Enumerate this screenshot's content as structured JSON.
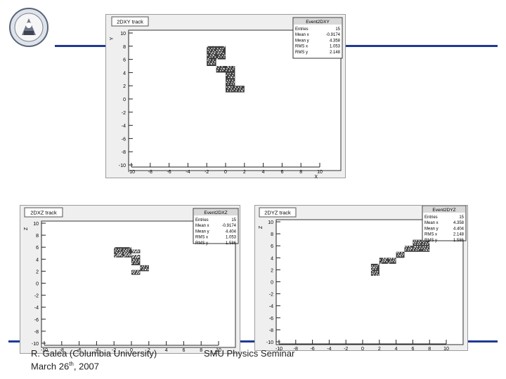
{
  "footer": {
    "author": "R. Galea (Columbia University)",
    "date_prefix": "March 26",
    "date_sup": "th",
    "date_suffix": ", 2007",
    "seminar": "SMU Physics Seminar"
  },
  "colors": {
    "rule": "#1f3a93",
    "panel_bg": "#efefef",
    "plot_bg": "#ffffff",
    "hits": "#111111",
    "stats_header": "#d8d8d8"
  },
  "chart_data": [
    {
      "type": "heatmap",
      "title": "2DXY track",
      "xlabel": "X",
      "ylabel": "Y",
      "xlim": [
        -10,
        10
      ],
      "ylim": [
        -10,
        10
      ],
      "xticks": [
        "-10",
        "-8",
        "-6",
        "-4",
        "-2",
        "0",
        "2",
        "4",
        "6",
        "8",
        "10"
      ],
      "yticks": [
        "-10",
        "-8",
        "-6",
        "-4",
        "-2",
        "0",
        "2",
        "4",
        "6",
        "8",
        "10"
      ],
      "cells": [
        {
          "x0": -2,
          "x1": -1,
          "y0": 7,
          "y1": 8
        },
        {
          "x0": -1,
          "x1": 0,
          "y0": 7,
          "y1": 8
        },
        {
          "x0": -2,
          "x1": -1,
          "y0": 6,
          "y1": 7
        },
        {
          "x0": -1,
          "x1": 0,
          "y0": 6,
          "y1": 7
        },
        {
          "x0": -2,
          "x1": -1,
          "y0": 5,
          "y1": 6
        },
        {
          "x0": -1,
          "x1": 0,
          "y0": 4,
          "y1": 5
        },
        {
          "x0": 0,
          "x1": 1,
          "y0": 4,
          "y1": 5
        },
        {
          "x0": 0,
          "x1": 1,
          "y0": 3,
          "y1": 4
        },
        {
          "x0": 0,
          "x1": 1,
          "y0": 2,
          "y1": 3
        },
        {
          "x0": 0,
          "x1": 1,
          "y0": 1,
          "y1": 2
        },
        {
          "x0": 1,
          "x1": 2,
          "y0": 1,
          "y1": 2
        }
      ],
      "stats": {
        "name": "Event2DXY",
        "rows": [
          {
            "label": "Entries",
            "value": "15"
          },
          {
            "label": "Mean x",
            "value": "-0.9174"
          },
          {
            "label": "Mean y",
            "value": "4.358"
          },
          {
            "label": "RMS x",
            "value": "1.053"
          },
          {
            "label": "RMS y",
            "value": "2.148"
          }
        ]
      }
    },
    {
      "type": "heatmap",
      "title": "2DXZ track",
      "xlabel": "X",
      "ylabel": "Z",
      "xlim": [
        -10,
        10
      ],
      "ylim": [
        -10,
        10
      ],
      "xticks": [
        "-10",
        "-8",
        "-6",
        "-4",
        "-2",
        "0",
        "2",
        "4",
        "6",
        "8",
        "10"
      ],
      "yticks": [
        "-10",
        "-8",
        "-6",
        "-4",
        "-2",
        "0",
        "2",
        "4",
        "6",
        "8",
        "10"
      ],
      "cells": [
        {
          "x0": -2,
          "x1": -1,
          "y0": 5,
          "y1": 6
        },
        {
          "x0": -1,
          "x1": 0,
          "y0": 5,
          "y1": 6
        },
        {
          "x0": -2,
          "x1": -1,
          "y0": 4.3,
          "y1": 5
        },
        {
          "x0": -1,
          "x1": 0,
          "y0": 4.3,
          "y1": 5
        },
        {
          "x0": 0,
          "x1": 1,
          "y0": 5,
          "y1": 5.6
        },
        {
          "x0": 0,
          "x1": 1,
          "y0": 4,
          "y1": 4.7
        },
        {
          "x0": 0,
          "x1": 1,
          "y0": 3,
          "y1": 4
        },
        {
          "x0": 1,
          "x1": 2,
          "y0": 2,
          "y1": 3
        },
        {
          "x0": 0,
          "x1": 1,
          "y0": 1.4,
          "y1": 2.2
        }
      ],
      "stats": {
        "name": "Event2DXZ",
        "rows": [
          {
            "label": "Entries",
            "value": "15"
          },
          {
            "label": "Mean x",
            "value": "-0.9174"
          },
          {
            "label": "Mean y",
            "value": "4.404"
          },
          {
            "label": "RMS x",
            "value": "1.053"
          },
          {
            "label": "RMS y",
            "value": "1.586"
          }
        ]
      }
    },
    {
      "type": "heatmap",
      "title": "2DYZ track",
      "xlabel": "Y",
      "ylabel": "Z",
      "xlim": [
        -10,
        10
      ],
      "ylim": [
        -10,
        10
      ],
      "xticks": [
        "-10",
        "-8",
        "-6",
        "-4",
        "-2",
        "0",
        "2",
        "4",
        "6",
        "8",
        "10"
      ],
      "yticks": [
        "-10",
        "-8",
        "-6",
        "-4",
        "-2",
        "0",
        "2",
        "4",
        "6",
        "8",
        "10"
      ],
      "cells": [
        {
          "x0": 1,
          "x1": 2,
          "y0": 1,
          "y1": 2
        },
        {
          "x0": 1,
          "x1": 2,
          "y0": 2,
          "y1": 3
        },
        {
          "x0": 2,
          "x1": 3,
          "y0": 3,
          "y1": 4
        },
        {
          "x0": 3,
          "x1": 4,
          "y0": 3,
          "y1": 4
        },
        {
          "x0": 4,
          "x1": 5,
          "y0": 4,
          "y1": 5
        },
        {
          "x0": 5,
          "x1": 6,
          "y0": 5,
          "y1": 6
        },
        {
          "x0": 6,
          "x1": 7,
          "y0": 5,
          "y1": 6
        },
        {
          "x0": 7,
          "x1": 8,
          "y0": 5,
          "y1": 6
        },
        {
          "x0": 6,
          "x1": 7,
          "y0": 6,
          "y1": 7
        },
        {
          "x0": 7,
          "x1": 8,
          "y0": 6,
          "y1": 7
        }
      ],
      "stats": {
        "name": "Event2DYZ",
        "rows": [
          {
            "label": "Entries",
            "value": "15"
          },
          {
            "label": "Mean x",
            "value": "4.358"
          },
          {
            "label": "Mean y",
            "value": "4.404"
          },
          {
            "label": "RMS x",
            "value": "2.148"
          },
          {
            "label": "RMS y",
            "value": "1.586"
          }
        ]
      }
    }
  ]
}
